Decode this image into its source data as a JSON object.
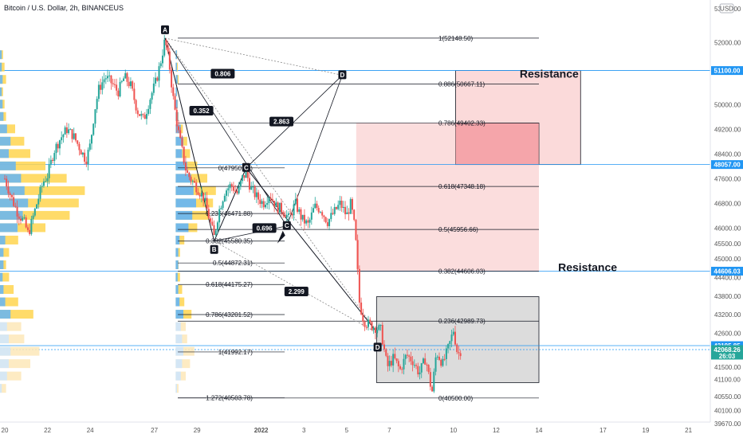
{
  "header": {
    "title": "Bitcoin / U.S. Dollar, 2h, BINANCEUS",
    "currency": "USD"
  },
  "colors": {
    "up": "#26a69a",
    "down": "#ef5350",
    "hline": "#2196f3",
    "vp_blue": "#64b5f6",
    "vp_yellow": "#ffd54f",
    "zone_red": "#f8bbbb",
    "zone_red_dark": "#f28b95",
    "zone_grey": "#d6d6d6"
  },
  "chart_data": {
    "type": "candlestick",
    "y_axis": {
      "ylim": [
        39670,
        53100
      ],
      "ticks": [
        53100,
        52000,
        51100,
        50000,
        49200,
        48400,
        47600,
        46800,
        46000,
        45500,
        45000,
        44400,
        43800,
        43200,
        42600,
        42000,
        41500,
        41100,
        40550,
        40100,
        39670
      ],
      "tick_labels": [
        "53100.00",
        "52000.00",
        "",
        "50000.00",
        "49200.00",
        "48400.00",
        "47600.00",
        "46800.00",
        "46000.00",
        "45500.00",
        "45000.00",
        "44400.00",
        "43800.00",
        "43200.00",
        "42600.00",
        "",
        "41500.00",
        "41100.00",
        "40550.00",
        "40100.00",
        "39670.00"
      ]
    },
    "x_axis": {
      "labels": [
        "20",
        "22",
        "24",
        "27",
        "29",
        "2022",
        "3",
        "5",
        "7",
        "10",
        "12",
        "14",
        "17",
        "19",
        "21"
      ],
      "label_day_index": [
        0,
        2,
        4,
        7,
        9,
        12,
        14,
        16,
        18,
        21,
        23,
        25,
        28,
        30,
        32
      ]
    },
    "horizontal_lines": [
      51100,
      48057,
      44606.03,
      42195.85,
      42068.26
    ],
    "price_tags": [
      {
        "value": 51100,
        "label": "51100.00",
        "color": "#2196f3"
      },
      {
        "value": 48057,
        "label": "48057.00",
        "color": "#2196f3"
      },
      {
        "value": 44606.03,
        "label": "44606.03",
        "color": "#2196f3"
      },
      {
        "value": 42195.85,
        "label": "42195.85",
        "color": "#2196f3"
      },
      {
        "value": 42068.26,
        "label": "42068.26",
        "color": "#26a69a",
        "sub": "26:03"
      }
    ],
    "fib_right": [
      {
        "label": "1(52148.50)",
        "value": 52148.5
      },
      {
        "label": "0.886(50667.11)",
        "value": 50667.11
      },
      {
        "label": "0.786(49402.33)",
        "value": 49402.33
      },
      {
        "label": "0.618(47348.18)",
        "value": 47348.18
      },
      {
        "label": "0.5(45956.66)",
        "value": 45956.66
      },
      {
        "label": "0.382(44606.03)",
        "value": 44606.03
      },
      {
        "label": "0.236(42989.73)",
        "value": 42989.73
      },
      {
        "label": "0(40500.00)",
        "value": 40500
      }
    ],
    "fib_left": [
      {
        "label": "0(47950.00)",
        "value": 47950
      },
      {
        "label": "0.236(46471.88)",
        "value": 46471.88
      },
      {
        "label": "0.382(45580.35)",
        "value": 45580.35
      },
      {
        "label": "0.5(44872.31)",
        "value": 44872.31
      },
      {
        "label": "0.618(44175.27)",
        "value": 44175.27
      },
      {
        "label": "0.786(43201.52)",
        "value": 43201.52
      },
      {
        "label": "1(41992.17)",
        "value": 41992.17
      },
      {
        "label": "1.272(40503.78)",
        "value": 40503.78
      }
    ],
    "pattern_points": [
      {
        "name": "A",
        "day": 7.5,
        "value": 52148.5
      },
      {
        "name": "B",
        "day": 9.8,
        "value": 45580
      },
      {
        "name": "C",
        "day": 11.3,
        "value": 47950
      },
      {
        "name": "D",
        "day": 17.45,
        "value": 42600
      }
    ],
    "projected_points": [
      {
        "name": "D",
        "day": 15.8,
        "value": 50950
      },
      {
        "name": "C",
        "day": 13.2,
        "value": 46070
      }
    ],
    "ratios": [
      {
        "label": "0.806",
        "day": 10.2,
        "value": 51000
      },
      {
        "label": "0.352",
        "day": 9.2,
        "value": 49800
      },
      {
        "label": "2.863",
        "day": 12.95,
        "value": 49450
      },
      {
        "label": "0.696",
        "day": 12.15,
        "value": 46000
      },
      {
        "label": "2.299",
        "day": 13.65,
        "value": 43950
      }
    ],
    "annotations": [
      {
        "text": "Resistance",
        "day": 24.1,
        "value": 51000
      },
      {
        "text": "Resistance",
        "day": 25.9,
        "value": 44740
      }
    ],
    "zones": [
      {
        "kind": "resistance",
        "day_from": 21.1,
        "day_to": 26.95,
        "from": 48057,
        "to": 51100
      },
      {
        "kind": "resistance-strong",
        "day_from": 21.1,
        "day_to": 25.0,
        "from": 48057,
        "to": 49402
      },
      {
        "kind": "resistance",
        "day_from": 16.45,
        "day_to": 25.0,
        "from": 44606,
        "to": 49402
      },
      {
        "kind": "support",
        "day_from": 17.4,
        "day_to": 25.0,
        "from": 41000,
        "to": 43780
      }
    ],
    "price_path": [
      [
        0.0,
        47600
      ],
      [
        0.3,
        47000
      ],
      [
        0.6,
        46500
      ],
      [
        0.9,
        46200
      ],
      [
        1.1,
        45800
      ],
      [
        1.3,
        46300
      ],
      [
        1.5,
        46800
      ],
      [
        1.8,
        47500
      ],
      [
        2.0,
        47700
      ],
      [
        2.3,
        48500
      ],
      [
        2.6,
        48900
      ],
      [
        2.9,
        49200
      ],
      [
        3.2,
        49000
      ],
      [
        3.5,
        48600
      ],
      [
        3.8,
        48200
      ],
      [
        4.0,
        48700
      ],
      [
        4.2,
        49800
      ],
      [
        4.4,
        50500
      ],
      [
        4.7,
        50900
      ],
      [
        5.0,
        50700
      ],
      [
        5.3,
        50400
      ],
      [
        5.6,
        50900
      ],
      [
        5.9,
        50600
      ],
      [
        6.2,
        49800
      ],
      [
        6.5,
        49500
      ],
      [
        6.8,
        50200
      ],
      [
        7.1,
        50800
      ],
      [
        7.3,
        51400
      ],
      [
        7.5,
        52100
      ],
      [
        7.7,
        51300
      ],
      [
        7.9,
        50100
      ],
      [
        8.1,
        49200
      ],
      [
        8.3,
        48500
      ],
      [
        8.5,
        47800
      ],
      [
        8.8,
        47500
      ],
      [
        9.0,
        47300
      ],
      [
        9.3,
        47000
      ],
      [
        9.5,
        46500
      ],
      [
        9.8,
        45700
      ],
      [
        10.0,
        46500
      ],
      [
        10.3,
        47200
      ],
      [
        10.6,
        47400
      ],
      [
        10.9,
        47100
      ],
      [
        11.1,
        47600
      ],
      [
        11.3,
        47800
      ],
      [
        11.5,
        47300
      ],
      [
        11.8,
        47000
      ],
      [
        12.1,
        46800
      ],
      [
        12.4,
        47100
      ],
      [
        12.7,
        46700
      ],
      [
        13.0,
        46600
      ],
      [
        13.3,
        46300
      ],
      [
        13.6,
        46800
      ],
      [
        13.9,
        46300
      ],
      [
        14.2,
        46100
      ],
      [
        14.5,
        46700
      ],
      [
        14.8,
        46600
      ],
      [
        15.1,
        46200
      ],
      [
        15.4,
        46500
      ],
      [
        15.7,
        46800
      ],
      [
        16.0,
        46400
      ],
      [
        16.2,
        46800
      ],
      [
        16.4,
        45900
      ],
      [
        16.6,
        43600
      ],
      [
        16.8,
        43000
      ],
      [
        17.0,
        42900
      ],
      [
        17.3,
        42800
      ],
      [
        17.6,
        42700
      ],
      [
        17.9,
        41500
      ],
      [
        18.2,
        41800
      ],
      [
        18.5,
        41400
      ],
      [
        18.8,
        41900
      ],
      [
        19.1,
        41700
      ],
      [
        19.4,
        41300
      ],
      [
        19.7,
        41800
      ],
      [
        19.9,
        41000
      ],
      [
        20.0,
        40700
      ],
      [
        20.2,
        42000
      ],
      [
        20.5,
        41600
      ],
      [
        20.8,
        42200
      ],
      [
        21.0,
        42700
      ],
      [
        21.2,
        41900
      ],
      [
        21.4,
        42100
      ]
    ],
    "volume_profile": [
      [
        52000,
        0,
        0
      ],
      [
        51600,
        0.1,
        0.1
      ],
      [
        51200,
        0.1,
        0.15
      ],
      [
        50800,
        0.15,
        0.2
      ],
      [
        50400,
        0.1,
        0.1
      ],
      [
        50000,
        0.15,
        0.15
      ],
      [
        49600,
        0.2,
        0.2
      ],
      [
        49200,
        0.4,
        0.5
      ],
      [
        48800,
        0.6,
        0.8
      ],
      [
        48400,
        0.5,
        1.0
      ],
      [
        48000,
        0.9,
        1.5
      ],
      [
        47600,
        1.2,
        2.2
      ],
      [
        47200,
        1.4,
        2.8
      ],
      [
        46800,
        1.6,
        2.6
      ],
      [
        46400,
        1.3,
        2.3
      ],
      [
        46000,
        1.0,
        1.5
      ],
      [
        45600,
        0.3,
        0.6
      ],
      [
        45200,
        0.2,
        0.3
      ],
      [
        44800,
        0.2,
        0.2
      ],
      [
        44400,
        0.15,
        0.3
      ],
      [
        44000,
        0.2,
        0.45
      ],
      [
        43600,
        0.3,
        0.6
      ],
      [
        43200,
        0.6,
        1.1
      ],
      [
        42800,
        0.4,
        0.7
      ],
      [
        42400,
        0.5,
        0.8
      ],
      [
        42000,
        0.6,
        1.3
      ],
      [
        41600,
        0.5,
        1.0
      ],
      [
        41200,
        0.4,
        0.7
      ],
      [
        40800,
        0.1,
        0.2
      ]
    ]
  }
}
